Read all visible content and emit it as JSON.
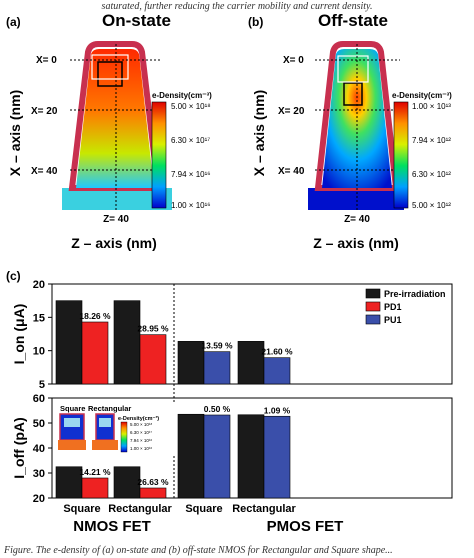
{
  "caption_top": "saturated, further reducing the carrier mobility and current density.",
  "caption_bottom": "Figure. The e-density of (a) on-state and (b) off-state NMOS for Rectangular and Square shape...",
  "panel_a": {
    "label": "(a)",
    "title": "On-state",
    "title_color": "#e02020",
    "x_marks": [
      "X= 0",
      "X= 20",
      "X= 40"
    ],
    "z_mark": "Z= 40",
    "x_axis_label": "X – axis (nm)",
    "z_axis_label": "Z – axis (nm)",
    "colorbar_title": "e-Density(cm⁻³)",
    "colorbar_ticks": [
      "5.00 × 10¹⁸",
      "6.30 × 10¹⁷",
      "7.94 × 10¹⁶",
      "1.00 × 10¹⁶"
    ]
  },
  "panel_b": {
    "label": "(b)",
    "title": "Off-state",
    "title_color": "#1f3f9a",
    "x_marks": [
      "X= 0",
      "X= 20",
      "X= 40"
    ],
    "z_mark": "Z= 40",
    "x_axis_label": "X – axis (nm)",
    "z_axis_label": "Z – axis (nm)",
    "colorbar_title": "e-Density(cm⁻³)",
    "colorbar_ticks": [
      "1.00 × 10¹³",
      "7.94 × 10¹²",
      "6.30 × 10¹²",
      "5.00 × 10¹²"
    ]
  },
  "panel_c": {
    "label": "(c)",
    "legend": [
      "Pre-irradiation",
      "PD1",
      "PU1"
    ],
    "colors": {
      "pre": "#1a1a1a",
      "pd1": "#ee2222",
      "pu1": "#3a4faa"
    },
    "group_labels": [
      "NMOS FET",
      "PMOS FET"
    ],
    "inset": {
      "labels": [
        "Square",
        "Rectangular"
      ],
      "colorbar_title": "e-Density(cm⁻³)",
      "colorbar_ticks": [
        "5.00 × 10¹⁸",
        "6.30 × 10¹⁷",
        "7.94 × 10¹⁶",
        "1.00 × 10¹⁶"
      ]
    }
  },
  "chart_data": [
    {
      "type": "bar",
      "ylabel": "I_on (μA)",
      "ylim": [
        5,
        20
      ],
      "yticks": [
        5,
        10,
        15,
        20
      ],
      "categories": [
        "Square",
        "Rectangular",
        "Square",
        "Rectangular"
      ],
      "series": [
        {
          "name": "Pre-irradiation",
          "values": [
            17.5,
            17.5,
            11.4,
            11.4
          ]
        },
        {
          "name": "PD1",
          "values": [
            14.3,
            12.4,
            null,
            null
          ]
        },
        {
          "name": "PU1",
          "values": [
            null,
            null,
            9.85,
            8.95
          ]
        }
      ],
      "annotations": [
        "18.26 %",
        "28.95 %",
        "13.59 %",
        "21.60 %"
      ]
    },
    {
      "type": "bar",
      "ylabel": "I_off (pA)",
      "ylim": [
        20,
        60
      ],
      "yticks": [
        20,
        30,
        40,
        50,
        60
      ],
      "categories": [
        "Square",
        "Rectangular",
        "Square",
        "Rectangular"
      ],
      "series": [
        {
          "name": "Pre-irradiation",
          "values": [
            32.5,
            32.5,
            53.5,
            53.3
          ]
        },
        {
          "name": "PD1",
          "values": [
            28,
            24,
            null,
            null
          ]
        },
        {
          "name": "PU1",
          "values": [
            null,
            null,
            53.2,
            52.7
          ]
        }
      ],
      "annotations": [
        "14.21 %",
        "26.63 %",
        "0.50 %",
        "1.09 %"
      ]
    }
  ]
}
